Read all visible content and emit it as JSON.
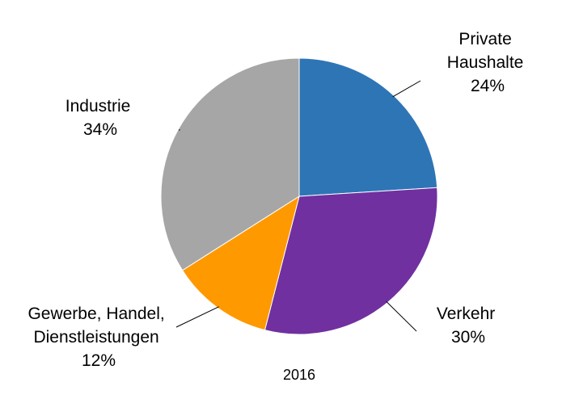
{
  "chart_data": {
    "type": "pie",
    "title": "2016",
    "start_angle_deg": 0,
    "direction": "clockwise",
    "slices": [
      {
        "name_lines": [
          "Private",
          "Haushalte"
        ],
        "percent_label": "24%",
        "value": 24,
        "color": "#2e75b6"
      },
      {
        "name_lines": [
          "Verkehr"
        ],
        "percent_label": "30%",
        "value": 30,
        "color": "#7030a0"
      },
      {
        "name_lines": [
          "Gewerbe, Handel,",
          "Dienstleistungen"
        ],
        "percent_label": "12%",
        "value": 12,
        "color": "#ff9900"
      },
      {
        "name_lines": [
          "Industrie"
        ],
        "percent_label": "34%",
        "value": 34,
        "color": "#a6a6a6"
      }
    ]
  }
}
